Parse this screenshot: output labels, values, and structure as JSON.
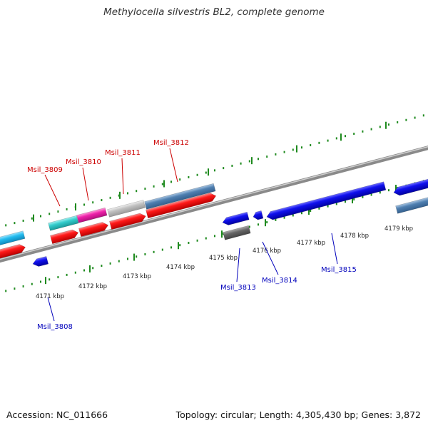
{
  "title": "Methylocella silvestris BL2, complete genome",
  "footer": {
    "accession": "Accession: NC_011666",
    "topology": "Topology: circular; Length: 4,305,430 bp; Genes: 3,872"
  },
  "colors": {
    "red_label": "#cc0000",
    "blue_label": "#0000bb",
    "ring_tick": "#1e8a1e",
    "gene_red": "#ff0000",
    "gene_blue": "#0000ee",
    "gene_cyan": "#33cccc",
    "gene_magenta": "#ee22aa",
    "gene_lightblue": "#22bbee",
    "gene_steel": "#4f7fb0",
    "gene_grey": "#c0c0c0",
    "gene_darkgrey": "#666666",
    "backbone": "#8a8a8a"
  },
  "scale_labels": [
    "4171 kbp",
    "4172 kbp",
    "4173 kbp",
    "4174 kbp",
    "4175 kbp",
    "4176 kbp",
    "4177 kbp",
    "4178 kbp",
    "4179 kbp"
  ],
  "gene_labels_top": [
    "Msil_3809",
    "Msil_3810",
    "Msil_3811",
    "Msil_3812"
  ],
  "gene_labels_bottom": [
    "Msil_3808",
    "Msil_3813",
    "Msil_3814",
    "Msil_3815"
  ]
}
